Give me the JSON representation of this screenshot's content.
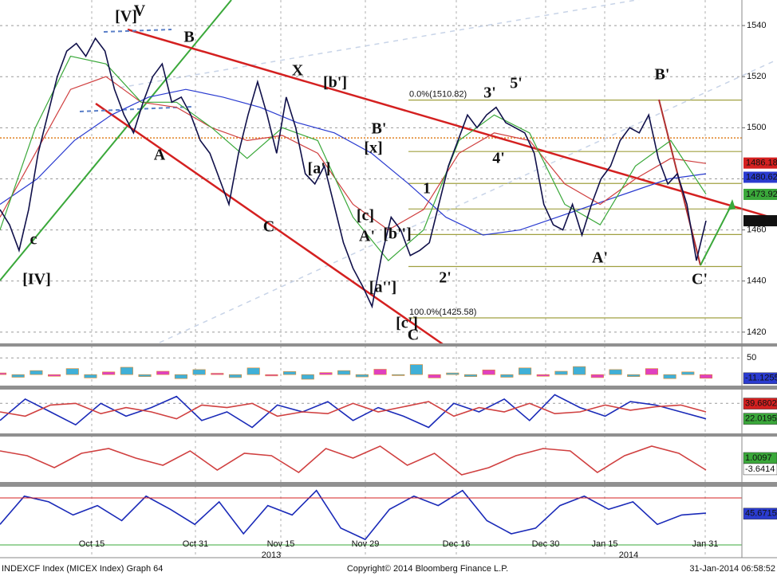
{
  "chart_data": {
    "type": "line",
    "footer": {
      "left": "INDEXCF Index (MICEX Index) Graph 64",
      "center": "Copyright© 2014 Bloomberg Finance L.P.",
      "right": "31-Jan-2014 06:58:52"
    },
    "x_labels": [
      "Oct 15",
      "Oct 31",
      "Nov 15",
      "Nov 29",
      "Dec 16",
      "Dec 30",
      "Jan 15",
      "Jan 31"
    ],
    "years": [
      "2013",
      "2014"
    ],
    "ylim": [
      1415.6,
      1550
    ],
    "yticks": [
      1420,
      1440,
      1460,
      1480,
      1500,
      1520,
      1540
    ],
    "grid": true,
    "series": [
      {
        "color": "#10104a",
        "values": [
          1468,
          1462,
          1452,
          1468,
          1490,
          1505,
          1520,
          1530,
          1533,
          1528,
          1535,
          1530,
          1515,
          1505,
          1498,
          1510,
          1520,
          1525,
          1510,
          1512,
          1505,
          1495,
          1490,
          1480,
          1470,
          1490,
          1505,
          1518,
          1505,
          1490,
          1512,
          1500,
          1482,
          1478,
          1485,
          1470,
          1455,
          1445,
          1438,
          1430,
          1450,
          1465,
          1460,
          1450,
          1452,
          1455,
          1470,
          1485,
          1495,
          1505,
          1500,
          1505,
          1508,
          1502,
          1500,
          1498,
          1490,
          1470,
          1462,
          1460,
          1470,
          1458,
          1470,
          1480,
          1485,
          1495,
          1500,
          1498,
          1505,
          1488,
          1478,
          1482,
          1470,
          1448,
          1463.6
        ]
      },
      {
        "color": "#2a3bd0",
        "values": [
          1470,
          1480,
          1495,
          1505,
          1512,
          1515,
          1512,
          1508,
          1502,
          1498,
          1490,
          1478,
          1465,
          1458,
          1460,
          1465,
          1470,
          1475,
          1480,
          1482
        ]
      },
      {
        "color": "#d04040",
        "values": [
          1465,
          1490,
          1515,
          1520,
          1510,
          1508,
          1500,
          1495,
          1497,
          1490,
          1470,
          1460,
          1468,
          1490,
          1498,
          1495,
          1478,
          1470,
          1480,
          1488,
          1486
        ]
      },
      {
        "color": "#3aa83a",
        "values": [
          1460,
          1500,
          1528,
          1525,
          1510,
          1510,
          1500,
          1488,
          1500,
          1495,
          1465,
          1448,
          1460,
          1495,
          1505,
          1498,
          1470,
          1462,
          1485,
          1495,
          1474
        ]
      }
    ],
    "badges": [
      {
        "value": 1486.18,
        "color": "#d42020"
      },
      {
        "value": 1480.62,
        "color": "#2a3bd0"
      },
      {
        "value": 1473.92,
        "color": "#3aa83a"
      },
      {
        "value": {
          "value": 1463.6,
          "label": "1463.60"
        },
        "color": "#111111"
      }
    ],
    "fib_labels": [
      {
        "value": 1510.82,
        "label": "0.0%(1510.82)"
      },
      {
        "value": 1425.58,
        "label": "100.0%(1425.58)"
      }
    ],
    "fib_levels": [
      1490.7,
      1478.2,
      1468.2,
      1458.2,
      1445.7
    ],
    "reference_level": 1496,
    "wave_labels": [
      {
        "text": "[V]",
        "color": "#3aa83a"
      },
      {
        "text": "V",
        "color": "#5a7fc8"
      },
      {
        "text": "B",
        "color": "#5a7fc8"
      },
      {
        "text": "A",
        "color": "#5a7fc8"
      },
      {
        "text": "C",
        "color": "#5a7fc8"
      },
      {
        "text": "c",
        "color": "#a040a0"
      },
      {
        "text": "[IV]",
        "color": "#3aa83a"
      },
      {
        "text": "X",
        "color": "#5a7fc8"
      },
      {
        "text": "[b']",
        "color": "#8fb0e0"
      },
      {
        "text": "[a']",
        "color": "#8fb0e0"
      },
      {
        "text": "[c]",
        "color": "#8fb0e0"
      },
      {
        "text": "A'",
        "color": "#5a7fc8"
      },
      {
        "text": "B'",
        "color": "#5a7fc8"
      },
      {
        "text": "[x]",
        "color": "#8fb0e0"
      },
      {
        "text": "[b'']",
        "color": "#8fb0e0"
      },
      {
        "text": "[a'']",
        "color": "#8fb0e0"
      },
      {
        "text": "[c']",
        "color": "#8fb0e0"
      },
      {
        "text": "C",
        "color": "#5a7fc8"
      },
      {
        "text": "1",
        "color": "#3aa83a"
      },
      {
        "text": "2'",
        "color": "#3aa83a"
      },
      {
        "text": "3'",
        "color": "#3aa83a"
      },
      {
        "text": "4'",
        "color": "#3aa83a"
      },
      {
        "text": "5'",
        "color": "#3aa83a"
      },
      {
        "text": "A'",
        "color": "#b03030"
      },
      {
        "text": "B'",
        "color": "#b03030"
      },
      {
        "text": "C'",
        "color": "#b03030"
      }
    ],
    "panels": [
      {
        "ylim": [
          -33,
          84
        ],
        "yticks": [
          50
        ],
        "style": "bar",
        "series": [
          {
            "color": "#e08a2a",
            "values": [
              5,
              -8,
              12,
              -5,
              18,
              -10,
              8,
              22,
              -6,
              10,
              -12,
              15,
              4,
              -9,
              20,
              -4,
              9,
              -14,
              6,
              12,
              -7,
              16,
              -3,
              30,
              -10,
              5,
              -6,
              14,
              -8,
              20,
              -5,
              10,
              24,
              -9,
              15,
              -6,
              18,
              -12,
              8,
              -11
            ]
          }
        ],
        "badges": [
          {
            "value": -11.1255,
            "color": "#2a3bd0"
          }
        ]
      },
      {
        "ylim": [
          5,
          56
        ],
        "yticks": [
          40
        ],
        "style": "line",
        "series": [
          {
            "color": "#1a2ab8",
            "values": [
              20,
              45,
              30,
              15,
              40,
              25,
              35,
              48,
              20,
              30,
              12,
              38,
              30,
              42,
              20,
              35,
              25,
              12,
              40,
              30,
              45,
              20,
              50,
              35,
              25,
              42,
              38,
              30,
              22
            ]
          },
          {
            "color": "#d04040",
            "values": [
              30,
              25,
              38,
              40,
              28,
              35,
              30,
              22,
              38,
              35,
              40,
              25,
              30,
              28,
              40,
              30,
              36,
              42,
              25,
              35,
              30,
              40,
              28,
              30,
              38,
              32,
              36,
              38,
              30
            ]
          }
        ],
        "badges": [
          {
            "value": 39.6802,
            "color": "#d42020"
          },
          {
            "value": 22.0195,
            "color": "#3aa83a"
          }
        ]
      },
      {
        "ylim": [
          -9,
          10
        ],
        "yticks": [],
        "style": "line",
        "series": [
          {
            "color": "#d04040",
            "values": [
              4,
              2,
              -3,
              3,
              5,
              1,
              -2,
              4,
              -4,
              3,
              2,
              -5,
              5,
              1,
              6,
              -2,
              3,
              -6,
              -3,
              2,
              5,
              4,
              -5,
              2,
              6,
              3,
              -4
            ]
          }
        ],
        "badges": [
          {
            "value": 1.0097,
            "color": "#3aa83a"
          },
          {
            "value": -3.6414,
            "color": "#ffffff"
          }
        ]
      },
      {
        "ylim": [
          22.3,
          60
        ],
        "yticks": [],
        "style": "line",
        "series": [
          {
            "color": "#1a2ab8",
            "values": [
              40,
              55,
              52,
              45,
              50,
              42,
              55,
              48,
              40,
              52,
              35,
              50,
              45,
              58,
              38,
              32,
              48,
              55,
              50,
              58,
              42,
              35,
              38,
              50,
              55,
              48,
              52,
              40,
              45,
              46
            ]
          }
        ],
        "badges": [
          {
            "value": 45.6715,
            "color": "#2a3bd0"
          }
        ]
      }
    ]
  }
}
